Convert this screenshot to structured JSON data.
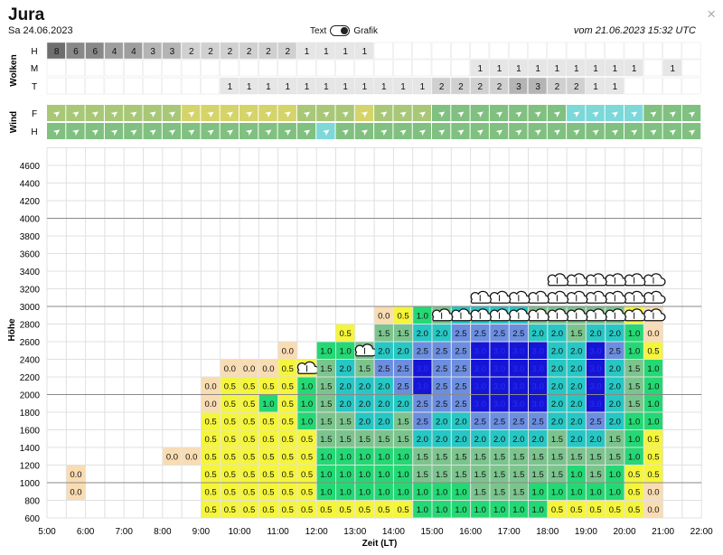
{
  "header": {
    "title": "Jura",
    "date": "Sa 24.06.2023",
    "toggle_left": "Text",
    "toggle_right": "Grafik",
    "issued": "vom 21.06.2023 15:32 UTC",
    "close_glyph": "×"
  },
  "cloud_panel": {
    "label": "Wolken",
    "rows": [
      {
        "name": "H",
        "cells": [
          8,
          6,
          6,
          4,
          4,
          3,
          3,
          2,
          2,
          2,
          2,
          2,
          2,
          1,
          1,
          1,
          1,
          null,
          null,
          null,
          null,
          null,
          null,
          null,
          null,
          null,
          null,
          null,
          null,
          null,
          null,
          null,
          null,
          null
        ]
      },
      {
        "name": "M",
        "cells": [
          null,
          null,
          null,
          null,
          null,
          null,
          null,
          null,
          null,
          null,
          null,
          null,
          null,
          null,
          null,
          null,
          null,
          null,
          null,
          null,
          null,
          null,
          1,
          1,
          1,
          1,
          1,
          1,
          1,
          1,
          1,
          null,
          1,
          null
        ]
      },
      {
        "name": "T",
        "cells": [
          null,
          null,
          null,
          null,
          null,
          null,
          null,
          null,
          null,
          1,
          1,
          1,
          1,
          1,
          1,
          1,
          1,
          1,
          1,
          1,
          2,
          2,
          2,
          2,
          3,
          3,
          2,
          2,
          1,
          1,
          null,
          null,
          null,
          null
        ]
      }
    ]
  },
  "wind_panel": {
    "label": "Wind",
    "rows": [
      {
        "name": "F",
        "colors": [
          "#a8c878",
          "#a8c878",
          "#a8c878",
          "#a8c878",
          "#a8c878",
          "#a8c878",
          "#a8c878",
          "#d4d46a",
          "#d4d46a",
          "#d4d46a",
          "#d4d46a",
          "#d4d46a",
          "#d4d46a",
          "#a8c878",
          "#a8c878",
          "#a8c878",
          "#d4d46a",
          "#a8c878",
          "#a8c878",
          "#a8c878",
          "#80c080",
          "#80c080",
          "#80c080",
          "#80c080",
          "#80c080",
          "#80c080",
          "#80c080",
          "#7dd8d8",
          "#7dd8d8",
          "#7dd8d8",
          "#7dd8d8",
          "#80c080",
          "#80c080",
          "#80c080"
        ]
      },
      {
        "name": "H",
        "colors": [
          "#80c080",
          "#80c080",
          "#80c080",
          "#80c080",
          "#80c080",
          "#80c080",
          "#80c080",
          "#80c080",
          "#80c080",
          "#80c080",
          "#80c080",
          "#80c080",
          "#80c080",
          "#80c080",
          "#7dd8d8",
          "#80c080",
          "#80c080",
          "#80c080",
          "#80c080",
          "#80c080",
          "#80c080",
          "#80c080",
          "#80c080",
          "#80c080",
          "#80c080",
          "#80c080",
          "#80c080",
          "#80c080",
          "#80c080",
          "#80c080",
          "#80c080",
          "#80c080",
          "#80c080",
          "#80c080"
        ]
      }
    ],
    "arrow_glyph": "➤"
  },
  "chart_data": {
    "type": "heatmap",
    "ylabel": "Höhe",
    "xlabel": "Zeit (LT)",
    "x_ticks": [
      "5:00",
      "6:00",
      "7:00",
      "8:00",
      "9:00",
      "10:00",
      "11:00",
      "12:00",
      "13:00",
      "14:00",
      "15:00",
      "16:00",
      "17:00",
      "18:00",
      "19:00",
      "20:00",
      "21:00",
      "22:00"
    ],
    "y_ticks": [
      600,
      800,
      1000,
      1200,
      1400,
      1600,
      1800,
      2000,
      2200,
      2400,
      2600,
      2800,
      3000,
      3200,
      3400,
      3600,
      3800,
      4000,
      4200,
      4400,
      4600
    ],
    "ylim": [
      600,
      4800
    ],
    "xlim": [
      5.0,
      22.0
    ],
    "x_step_hours": 0.5,
    "y_step_m": 200,
    "colors": {
      "0.0": "#f9dcb2",
      "0.5": "#f5f53c",
      "1.0": "#24d874",
      "1.5": "#7cc48e",
      "2.0": "#26c7c4",
      "2.5": "#6c8ee0",
      "3.0": "#1515d6"
    },
    "columns": [
      {
        "t": 5.5,
        "base": 800,
        "cells": [
          "0.0",
          "0.0"
        ]
      },
      {
        "t": 8.0,
        "base": 1200,
        "cells": [
          "0.0"
        ]
      },
      {
        "t": 8.5,
        "base": 1200,
        "cells": [
          "0.0"
        ]
      },
      {
        "t": 9.0,
        "base": 600,
        "cells": [
          "0.5",
          "0.5",
          "0.5",
          "0.5",
          "0.5",
          "0.5",
          "0.0",
          "0.0"
        ]
      },
      {
        "t": 9.5,
        "base": 600,
        "cells": [
          "0.5",
          "0.5",
          "0.5",
          "0.5",
          "0.5",
          "0.5",
          "0.5",
          "0.5",
          "0.0"
        ]
      },
      {
        "t": 10.0,
        "base": 600,
        "cells": [
          "0.5",
          "0.5",
          "0.5",
          "0.5",
          "0.5",
          "0.5",
          "0.5",
          "0.5",
          "0.0"
        ]
      },
      {
        "t": 10.5,
        "base": 600,
        "cells": [
          "0.5",
          "0.5",
          "0.5",
          "0.5",
          "0.5",
          "0.5",
          "1.0",
          "0.5",
          "0.0"
        ]
      },
      {
        "t": 11.0,
        "base": 600,
        "cells": [
          "0.5",
          "0.5",
          "0.5",
          "0.5",
          "0.5",
          "0.5",
          "0.5",
          "0.5",
          "0.5",
          "0.0"
        ]
      },
      {
        "t": 11.5,
        "base": 600,
        "cells": [
          "0.5",
          "0.5",
          "0.5",
          "0.5",
          "0.5",
          "1.0",
          "1.0",
          "1.0",
          "0.5"
        ],
        "clouds": [
          2200
        ]
      },
      {
        "t": 12.0,
        "base": 600,
        "cells": [
          "0.5",
          "1.0",
          "1.0",
          "1.0",
          "1.5",
          "1.5",
          "1.5",
          "1.5",
          "1.5",
          "1.0"
        ]
      },
      {
        "t": 12.5,
        "base": 600,
        "cells": [
          "0.5",
          "1.0",
          "1.0",
          "1.0",
          "1.5",
          "1.5",
          "2.0",
          "2.0",
          "2.0",
          "1.0",
          "0.5"
        ]
      },
      {
        "t": 13.0,
        "base": 600,
        "cells": [
          "0.5",
          "1.0",
          "1.0",
          "1.0",
          "1.5",
          "2.0",
          "2.0",
          "2.0",
          "1.5",
          "1.5"
        ],
        "clouds": [
          2400
        ]
      },
      {
        "t": 13.5,
        "base": 600,
        "cells": [
          "0.5",
          "1.0",
          "1.0",
          "1.0",
          "1.5",
          "2.0",
          "2.0",
          "2.0",
          "2.5",
          "2.0",
          "1.5",
          "0.0"
        ]
      },
      {
        "t": 14.0,
        "base": 600,
        "cells": [
          "0.5",
          "1.0",
          "1.0",
          "1.0",
          "1.5",
          "1.5",
          "2.0",
          "2.5",
          "2.5",
          "2.0",
          "1.5",
          "0.5"
        ]
      },
      {
        "t": 14.5,
        "base": 600,
        "cells": [
          "1.0",
          "1.0",
          "1.5",
          "1.5",
          "2.0",
          "2.5",
          "2.5",
          "3.0",
          "3.0",
          "2.5",
          "2.0",
          "1.0"
        ]
      },
      {
        "t": 15.0,
        "base": 600,
        "cells": [
          "1.0",
          "1.0",
          "1.5",
          "1.5",
          "2.0",
          "2.0",
          "2.5",
          "2.5",
          "2.5",
          "2.5",
          "2.0",
          "1.5"
        ],
        "clouds": [
          2800
        ]
      },
      {
        "t": 15.5,
        "base": 600,
        "cells": [
          "1.0",
          "1.0",
          "1.5",
          "1.5",
          "2.0",
          "2.0",
          "2.5",
          "2.5",
          "2.5",
          "2.5",
          "2.5",
          "2.0"
        ],
        "clouds": [
          2800
        ]
      },
      {
        "t": 16.0,
        "base": 600,
        "cells": [
          "1.0",
          "1.5",
          "1.5",
          "1.5",
          "2.0",
          "2.5",
          "3.0",
          "3.0",
          "3.0",
          "3.0",
          "2.5",
          "2.0"
        ],
        "clouds": [
          2800,
          3000
        ]
      },
      {
        "t": 16.5,
        "base": 600,
        "cells": [
          "1.0",
          "1.5",
          "1.5",
          "1.5",
          "2.0",
          "2.5",
          "3.0",
          "3.0",
          "3.0",
          "3.0",
          "2.5",
          "2.0"
        ],
        "clouds": [
          2800,
          3000
        ]
      },
      {
        "t": 17.0,
        "base": 600,
        "cells": [
          "1.0",
          "1.5",
          "1.5",
          "1.5",
          "2.0",
          "2.5",
          "3.0",
          "3.0",
          "3.0",
          "3.0",
          "2.5",
          "2.0"
        ],
        "clouds": [
          2800,
          3000
        ]
      },
      {
        "t": 17.5,
        "base": 600,
        "cells": [
          "1.0",
          "1.0",
          "1.5",
          "1.5",
          "2.0",
          "2.5",
          "3.0",
          "3.0",
          "3.0",
          "3.0",
          "2.0",
          "1.5"
        ],
        "clouds": [
          2800,
          3000
        ]
      },
      {
        "t": 18.0,
        "base": 600,
        "cells": [
          "0.5",
          "1.0",
          "1.5",
          "1.5",
          "1.5",
          "2.0",
          "2.0",
          "2.0",
          "2.0",
          "2.0",
          "2.0",
          "1.5"
        ],
        "clouds": [
          2800,
          3000,
          3200
        ]
      },
      {
        "t": 18.5,
        "base": 600,
        "cells": [
          "0.5",
          "1.0",
          "1.0",
          "1.5",
          "2.0",
          "2.0",
          "2.0",
          "2.0",
          "2.0",
          "2.0",
          "1.5",
          "1.5"
        ],
        "clouds": [
          2800,
          3000,
          3200
        ]
      },
      {
        "t": 19.0,
        "base": 600,
        "cells": [
          "0.5",
          "1.0",
          "1.5",
          "1.5",
          "2.0",
          "2.5",
          "3.0",
          "3.0",
          "3.0",
          "3.0",
          "2.0",
          "1.5"
        ],
        "clouds": [
          2800,
          3000,
          3200
        ]
      },
      {
        "t": 19.5,
        "base": 600,
        "cells": [
          "0.5",
          "1.0",
          "1.0",
          "1.5",
          "1.5",
          "2.0",
          "2.0",
          "2.0",
          "2.0",
          "2.5",
          "2.0",
          "1.5"
        ],
        "clouds": [
          2800,
          3000,
          3200
        ]
      },
      {
        "t": 20.0,
        "base": 600,
        "cells": [
          "0.5",
          "0.5",
          "0.5",
          "1.0",
          "1.0",
          "1.0",
          "1.5",
          "1.5",
          "1.5",
          "1.0",
          "1.0",
          "0.5"
        ],
        "clouds": [
          2800,
          3000,
          3200
        ]
      },
      {
        "t": 20.5,
        "base": 600,
        "cells": [
          "0.0",
          "0.0",
          "0.5",
          "0.5",
          "0.5",
          "1.0",
          "1.0",
          "1.0",
          "1.0",
          "0.5",
          "0.0",
          "0.0"
        ],
        "clouds": [
          2800,
          3000,
          3200
        ]
      }
    ]
  }
}
